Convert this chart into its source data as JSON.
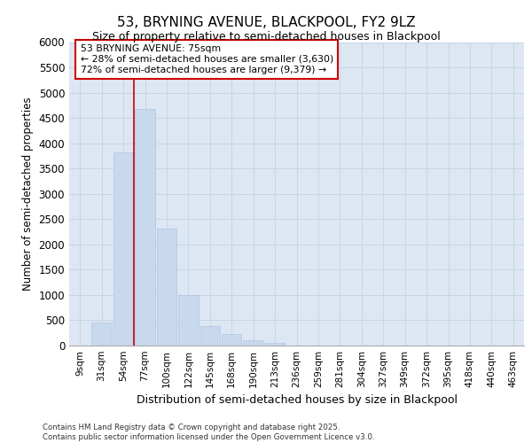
{
  "title_line1": "53, BRYNING AVENUE, BLACKPOOL, FY2 9LZ",
  "title_line2": "Size of property relative to semi-detached houses in Blackpool",
  "xlabel": "Distribution of semi-detached houses by size in Blackpool",
  "ylabel": "Number of semi-detached properties",
  "footnote": "Contains HM Land Registry data © Crown copyright and database right 2025.\nContains public sector information licensed under the Open Government Licence v3.0.",
  "bar_color": "#c8d8ed",
  "bar_edge_color": "#a8c0de",
  "grid_color": "#c8d4e4",
  "background_color": "#dde7f3",
  "annotation_box_color": "#cc0000",
  "vline_color": "#cc0000",
  "categories": [
    "9sqm",
    "31sqm",
    "54sqm",
    "77sqm",
    "100sqm",
    "122sqm",
    "145sqm",
    "168sqm",
    "190sqm",
    "213sqm",
    "236sqm",
    "259sqm",
    "281sqm",
    "304sqm",
    "327sqm",
    "349sqm",
    "372sqm",
    "395sqm",
    "418sqm",
    "440sqm",
    "463sqm"
  ],
  "values": [
    5,
    450,
    3820,
    4680,
    2320,
    1000,
    390,
    230,
    110,
    60,
    0,
    0,
    0,
    0,
    0,
    0,
    0,
    0,
    0,
    0,
    0
  ],
  "property_label": "53 BRYNING AVENUE: 75sqm",
  "pct_smaller": 28,
  "pct_larger": 72,
  "count_smaller": 3630,
  "count_larger": 9379,
  "vline_bin_index": 3,
  "ylim": [
    0,
    6000
  ],
  "yticks": [
    0,
    500,
    1000,
    1500,
    2000,
    2500,
    3000,
    3500,
    4000,
    4500,
    5000,
    5500,
    6000
  ]
}
